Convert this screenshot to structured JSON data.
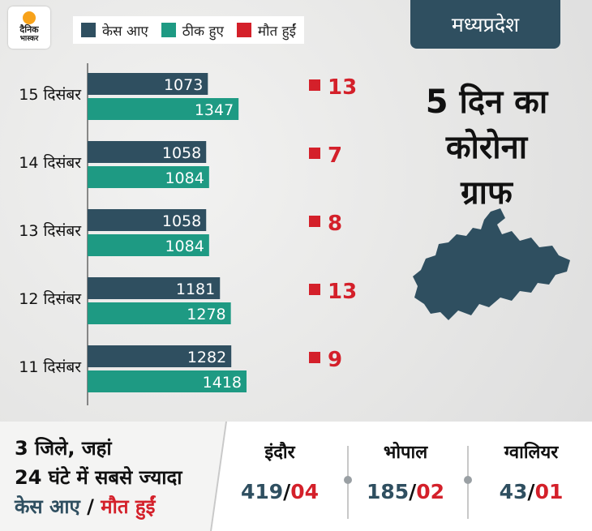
{
  "brand": {
    "line1": "दैनिक",
    "line2": "भास्कर"
  },
  "state_label": "मध्यप्रदेश",
  "headline": [
    "5 दिन का",
    "कोरोना",
    "ग्राफ"
  ],
  "colors": {
    "cases": "#2f4f60",
    "recovered": "#1e9a83",
    "deaths": "#d4202a"
  },
  "icons": {
    "map": "madhya-pradesh-map-icon"
  },
  "chart_data": {
    "type": "bar",
    "orientation": "horizontal",
    "categories": [
      "15 दिसंबर",
      "14 दिसंबर",
      "13 दिसंबर",
      "12 दिसंबर",
      "11 दिसंबर"
    ],
    "series": [
      {
        "name": "केस आए",
        "values": [
          1073,
          1058,
          1058,
          1181,
          1282
        ]
      },
      {
        "name": "ठीक हुए",
        "values": [
          1347,
          1084,
          1084,
          1278,
          1418
        ]
      },
      {
        "name": "मौत हुईं",
        "values": [
          13,
          7,
          8,
          13,
          9
        ]
      }
    ],
    "legend_position": "top-left",
    "grid": false
  },
  "bottom": {
    "line1": "3 जिले, जहां",
    "line2": "24 घंटे में सबसे ज्यादा",
    "line3_cases": "केस आए",
    "line3_sep": " / ",
    "line3_deaths": "मौत हुईं",
    "cities": [
      {
        "name": "इंदौर",
        "cases": "419",
        "sep": "/",
        "deaths": "04"
      },
      {
        "name": "भोपाल",
        "cases": "185",
        "sep": "/",
        "deaths": "02"
      },
      {
        "name": "ग्वालियर",
        "cases": "43",
        "sep": "/",
        "deaths": "01"
      }
    ]
  }
}
